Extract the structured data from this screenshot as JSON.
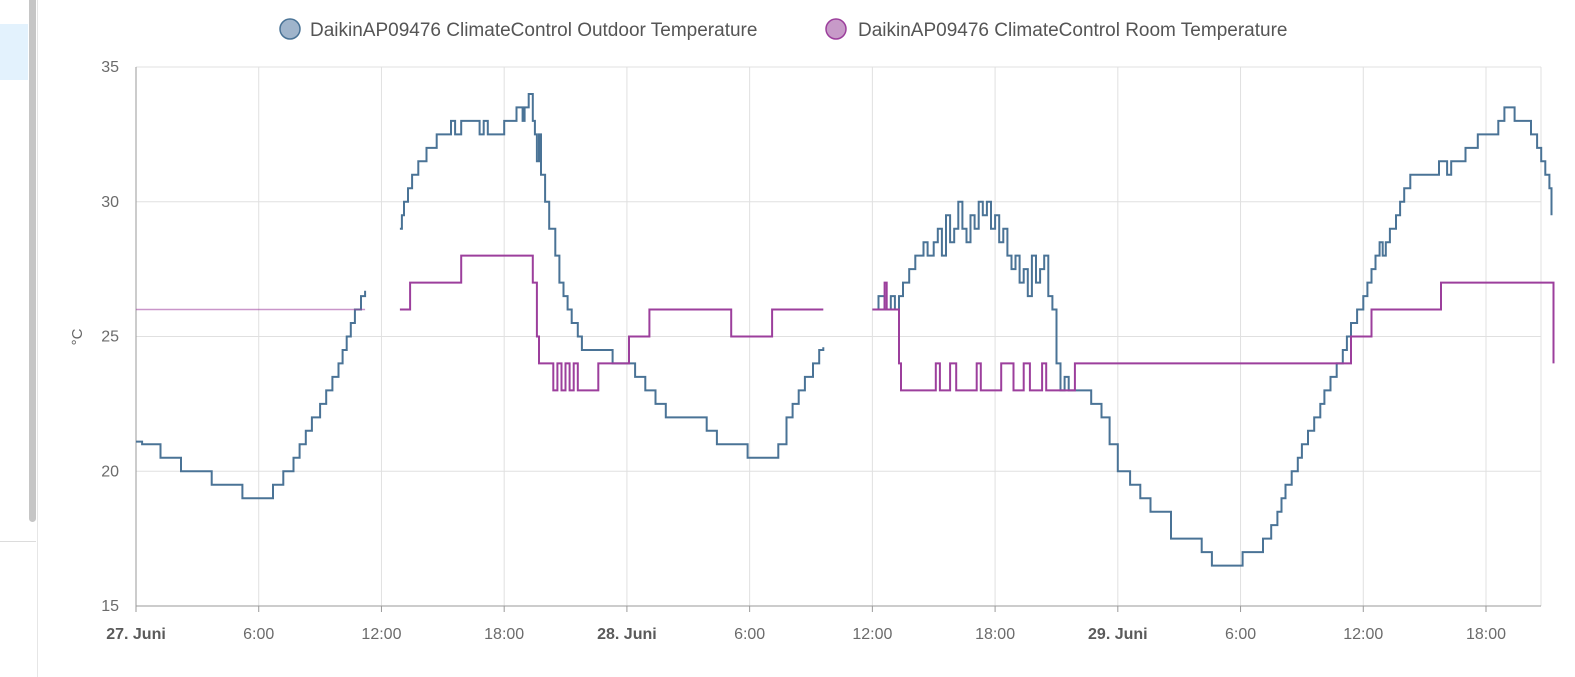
{
  "chart_data": {
    "type": "line",
    "step": true,
    "ylabel": "°C",
    "ylim": [
      15,
      35
    ],
    "yticks": [
      "35",
      "30",
      "25",
      "20",
      "15"
    ],
    "xticks": [
      {
        "label": "27. Juni",
        "bold": true,
        "hour": 0
      },
      {
        "label": "6:00",
        "bold": false,
        "hour": 6
      },
      {
        "label": "12:00",
        "bold": false,
        "hour": 12
      },
      {
        "label": "18:00",
        "bold": false,
        "hour": 18
      },
      {
        "label": "28. Juni",
        "bold": true,
        "hour": 24
      },
      {
        "label": "6:00",
        "bold": false,
        "hour": 30
      },
      {
        "label": "12:00",
        "bold": false,
        "hour": 36
      },
      {
        "label": "18:00",
        "bold": false,
        "hour": 42
      },
      {
        "label": "29. Juni",
        "bold": true,
        "hour": 48
      },
      {
        "label": "6:00",
        "bold": false,
        "hour": 54
      },
      {
        "label": "12:00",
        "bold": false,
        "hour": 60
      },
      {
        "label": "18:00",
        "bold": false,
        "hour": 66
      }
    ],
    "xlim_hours": [
      0,
      69.4
    ],
    "grid": true,
    "legend_position": "top",
    "series": [
      {
        "name": "DaikinAP09476 ClimateControl Outdoor Temperature",
        "color": "#4a7396",
        "legend_fill": "#9fb4cb",
        "faint_until_hour": 1.2,
        "segments": [
          [
            [
              0,
              21.1
            ],
            [
              0.3,
              21
            ],
            [
              1.2,
              20.5
            ],
            [
              2.2,
              20
            ],
            [
              3.7,
              19.5
            ],
            [
              5.2,
              19
            ],
            [
              6.7,
              19.5
            ],
            [
              7.2,
              20
            ],
            [
              7.7,
              20.5
            ],
            [
              8,
              21
            ],
            [
              8.3,
              21.5
            ],
            [
              8.6,
              22
            ],
            [
              9,
              22.5
            ],
            [
              9.3,
              23
            ],
            [
              9.6,
              23.5
            ],
            [
              9.9,
              24
            ],
            [
              10.1,
              24.5
            ],
            [
              10.3,
              25
            ],
            [
              10.5,
              25.5
            ],
            [
              10.7,
              26
            ],
            [
              11,
              26.5
            ],
            [
              11.2,
              26.7
            ]
          ],
          [
            [
              12.9,
              29
            ],
            [
              13,
              29.5
            ],
            [
              13.1,
              30
            ],
            [
              13.3,
              30.5
            ],
            [
              13.5,
              31
            ],
            [
              13.8,
              31.5
            ],
            [
              14.2,
              32
            ],
            [
              14.7,
              32.5
            ],
            [
              15.4,
              33
            ],
            [
              15.6,
              32.5
            ],
            [
              15.9,
              33
            ],
            [
              16.8,
              32.5
            ],
            [
              17,
              33
            ],
            [
              17.2,
              32.5
            ],
            [
              17.5,
              32.5
            ],
            [
              18,
              33
            ],
            [
              18.6,
              33.5
            ],
            [
              18.9,
              33
            ],
            [
              19,
              33.5
            ],
            [
              19.2,
              34
            ],
            [
              19.4,
              33
            ],
            [
              19.5,
              32.5
            ],
            [
              19.6,
              31.5
            ],
            [
              19.7,
              32.5
            ],
            [
              19.8,
              31
            ],
            [
              20,
              30
            ],
            [
              20.2,
              29
            ],
            [
              20.5,
              28
            ],
            [
              20.7,
              27
            ],
            [
              20.9,
              26.5
            ],
            [
              21.1,
              26
            ],
            [
              21.3,
              25.5
            ],
            [
              21.6,
              25
            ],
            [
              21.8,
              24.5
            ],
            [
              23.3,
              24
            ],
            [
              23.9,
              24
            ],
            [
              24.4,
              23.5
            ],
            [
              24.9,
              23
            ],
            [
              25.4,
              22.5
            ],
            [
              25.9,
              22
            ],
            [
              27.9,
              21.5
            ],
            [
              28.4,
              21
            ],
            [
              29.9,
              20.5
            ],
            [
              31.4,
              21
            ],
            [
              31.8,
              22
            ],
            [
              32.1,
              22.5
            ],
            [
              32.4,
              23
            ],
            [
              32.7,
              23.5
            ],
            [
              33.1,
              24
            ],
            [
              33.4,
              24.5
            ],
            [
              33.6,
              24.6
            ]
          ],
          [
            [
              36,
              26
            ],
            [
              36.3,
              26.5
            ],
            [
              36.6,
              26
            ],
            [
              36.9,
              26.5
            ],
            [
              37.1,
              26
            ],
            [
              37.3,
              26.5
            ],
            [
              37.5,
              27
            ],
            [
              37.8,
              27.5
            ],
            [
              38.1,
              28
            ],
            [
              38.5,
              28.5
            ],
            [
              38.7,
              28
            ],
            [
              39,
              28.5
            ],
            [
              39.2,
              29
            ],
            [
              39.4,
              28
            ],
            [
              39.6,
              29.5
            ],
            [
              39.8,
              28.5
            ],
            [
              40,
              29
            ],
            [
              40.2,
              30
            ],
            [
              40.4,
              29
            ],
            [
              40.6,
              28.5
            ],
            [
              40.8,
              29.5
            ],
            [
              41,
              29
            ],
            [
              41.2,
              30
            ],
            [
              41.4,
              29.5
            ],
            [
              41.6,
              30
            ],
            [
              41.8,
              29
            ],
            [
              42,
              29.5
            ],
            [
              42.2,
              28.5
            ],
            [
              42.4,
              29
            ],
            [
              42.6,
              28
            ],
            [
              42.8,
              27.5
            ],
            [
              43,
              28
            ],
            [
              43.2,
              27
            ],
            [
              43.4,
              27.5
            ],
            [
              43.6,
              26.5
            ],
            [
              43.8,
              28
            ],
            [
              44,
              27
            ],
            [
              44.2,
              27.5
            ],
            [
              44.4,
              28
            ],
            [
              44.6,
              26.5
            ],
            [
              44.8,
              26
            ],
            [
              45,
              24
            ],
            [
              45.2,
              23
            ],
            [
              45.4,
              23.5
            ],
            [
              45.6,
              23
            ],
            [
              46.7,
              22.5
            ],
            [
              47.2,
              22
            ],
            [
              47.6,
              21
            ],
            [
              48,
              20
            ],
            [
              48.6,
              19.5
            ],
            [
              49.1,
              19
            ],
            [
              49.6,
              18.5
            ],
            [
              50.6,
              17.5
            ],
            [
              52.1,
              17
            ],
            [
              52.6,
              16.5
            ],
            [
              54.1,
              17
            ],
            [
              55.1,
              17.5
            ],
            [
              55.5,
              18
            ],
            [
              55.8,
              18.5
            ],
            [
              56,
              19
            ],
            [
              56.2,
              19.5
            ],
            [
              56.5,
              20
            ],
            [
              56.8,
              20.5
            ],
            [
              57,
              21
            ],
            [
              57.3,
              21.5
            ],
            [
              57.6,
              22
            ],
            [
              57.9,
              22.5
            ],
            [
              58.1,
              23
            ],
            [
              58.4,
              23.5
            ],
            [
              58.7,
              24
            ],
            [
              59,
              24.5
            ],
            [
              59.2,
              25
            ],
            [
              59.4,
              25.5
            ],
            [
              59.7,
              26
            ],
            [
              60,
              26.5
            ],
            [
              60.2,
              27
            ],
            [
              60.4,
              27.5
            ],
            [
              60.6,
              28
            ],
            [
              60.8,
              28.5
            ],
            [
              60.95,
              28
            ],
            [
              61.1,
              28.5
            ],
            [
              61.3,
              29
            ],
            [
              61.6,
              29.5
            ],
            [
              61.8,
              30
            ],
            [
              62,
              30.5
            ],
            [
              62.3,
              31
            ],
            [
              63.7,
              31.5
            ],
            [
              64.1,
              31
            ],
            [
              64.3,
              31.5
            ],
            [
              64.7,
              31.5
            ],
            [
              65,
              32
            ],
            [
              65.6,
              32.5
            ],
            [
              66.6,
              33
            ],
            [
              66.9,
              33.5
            ],
            [
              67.4,
              33
            ],
            [
              68.2,
              32.5
            ],
            [
              68.5,
              32
            ],
            [
              68.7,
              31.5
            ],
            [
              68.9,
              31
            ],
            [
              69.1,
              30.5
            ],
            [
              69.2,
              29.5
            ]
          ]
        ]
      },
      {
        "name": "DaikinAP09476 ClimateControl Room Temperature",
        "color": "#9c3f9c",
        "legend_fill": "#c79ac8",
        "faint_until_hour": 11.2,
        "segments": [
          [
            [
              0,
              26
            ],
            [
              11.2,
              26
            ]
          ],
          [
            [
              12.9,
              26
            ],
            [
              13.4,
              27
            ],
            [
              15.9,
              28
            ],
            [
              19.4,
              27
            ],
            [
              19.6,
              25
            ],
            [
              19.7,
              24
            ],
            [
              20.4,
              23
            ],
            [
              20.6,
              24
            ],
            [
              20.8,
              23
            ],
            [
              21,
              24
            ],
            [
              21.2,
              23
            ],
            [
              21.4,
              24
            ],
            [
              21.6,
              23
            ],
            [
              22.6,
              24
            ],
            [
              24,
              24
            ],
            [
              24.1,
              25
            ],
            [
              25.1,
              26
            ],
            [
              29.1,
              25
            ],
            [
              31.1,
              26
            ],
            [
              33.6,
              26
            ]
          ],
          [
            [
              36,
              26
            ],
            [
              36.6,
              27
            ],
            [
              36.7,
              26
            ],
            [
              36.9,
              26
            ],
            [
              37.3,
              24
            ],
            [
              37.4,
              23
            ],
            [
              39.1,
              24
            ],
            [
              39.3,
              23
            ],
            [
              39.8,
              24
            ],
            [
              40.1,
              23
            ],
            [
              41.1,
              24
            ],
            [
              41.3,
              23
            ],
            [
              42.3,
              24
            ],
            [
              42.9,
              23
            ],
            [
              43.4,
              24
            ],
            [
              43.7,
              23
            ],
            [
              44.3,
              24
            ],
            [
              44.5,
              23
            ],
            [
              45.9,
              24
            ],
            [
              59.4,
              25
            ],
            [
              60.4,
              26
            ],
            [
              63.8,
              27
            ],
            [
              69.2,
              27
            ],
            [
              69.3,
              24
            ]
          ]
        ]
      }
    ]
  }
}
